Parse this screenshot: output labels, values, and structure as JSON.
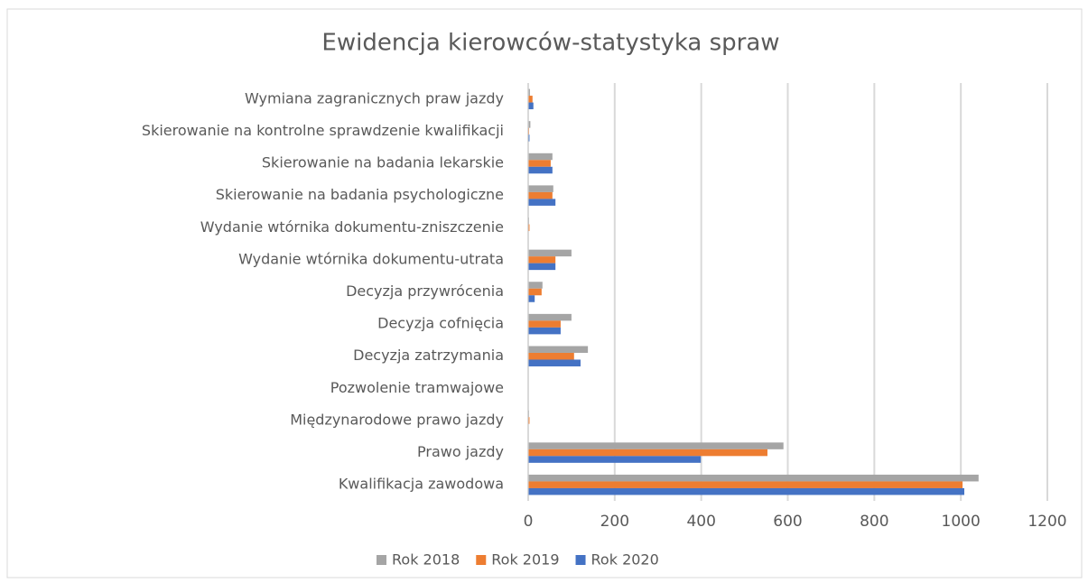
{
  "chart_data": {
    "type": "bar",
    "orientation": "horizontal",
    "title": "Ewidencja kierowców-statystyka spraw",
    "categories": [
      "Wymiana zagranicznych praw jazdy",
      "Skierowanie na kontrolne sprawdzenie kwalifikacji",
      "Skierowanie na badania lekarskie",
      "Skierowanie na badania psychologiczne",
      "Wydanie wtórnika dokumentu-zniszczenie",
      "Wydanie wtórnika dokumentu-utrata",
      "Decyzja przywrócenia",
      "Decyzja cofnięcia",
      "Decyzja zatrzymania",
      "Pozwolenie tramwajowe",
      "Międzynarodowe prawo jazdy",
      "Prawo jazdy",
      "Kwalifikacja zawodowa"
    ],
    "series": [
      {
        "name": "Rok 2018",
        "color": "#a5a5a5",
        "values": [
          4,
          5,
          56,
          58,
          2,
          100,
          33,
          100,
          138,
          0,
          2,
          590,
          1041
        ]
      },
      {
        "name": "Rok 2019",
        "color": "#ed7d31",
        "values": [
          10,
          2,
          52,
          56,
          3,
          63,
          31,
          75,
          106,
          0,
          3,
          553,
          1004
        ]
      },
      {
        "name": "Rok 2020",
        "color": "#4472c4",
        "values": [
          12,
          3,
          56,
          63,
          1,
          63,
          15,
          75,
          121,
          0,
          1,
          399,
          1008
        ]
      }
    ],
    "xlim": [
      0,
      1200
    ],
    "xticks": [
      0,
      200,
      400,
      600,
      800,
      1000,
      1200
    ],
    "grid": true,
    "legend": "bottom"
  }
}
